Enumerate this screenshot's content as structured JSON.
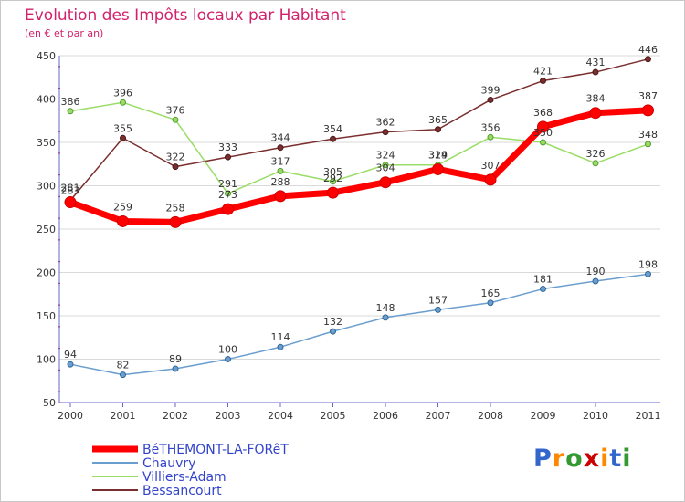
{
  "title": "Evolution des Impôts locaux par Habitant",
  "subtitle": "(en € et par an)",
  "logo_text": "Proxiti",
  "chart_data": {
    "type": "line",
    "title": "Evolution des Impôts locaux par Habitant",
    "subtitle": "(en € et par an)",
    "xlabel": "",
    "ylabel": "",
    "x": [
      "2000",
      "2001",
      "2002",
      "2003",
      "2004",
      "2005",
      "2006",
      "2007",
      "2008",
      "2009",
      "2010",
      "2011"
    ],
    "ylim": [
      50,
      450
    ],
    "yticks": [
      50,
      100,
      150,
      200,
      250,
      300,
      350,
      400,
      450
    ],
    "legend_position": "bottom-left",
    "series": [
      {
        "name": "BéTHEMONT-LA-FORêT",
        "color": "#ff0000",
        "values": [
          281,
          259,
          258,
          273,
          288,
          292,
          304,
          319,
          307,
          368,
          384,
          387
        ],
        "labels": [
          "281",
          "259",
          "258",
          "273",
          "288",
          "292",
          "304",
          "319",
          "307",
          "368",
          "384",
          "387"
        ]
      },
      {
        "name": "Chauvry",
        "color": "#6a9ecf",
        "values": [
          94,
          82,
          89,
          100,
          114,
          132,
          148,
          157,
          165,
          181,
          190,
          198
        ],
        "labels": [
          "94",
          "82",
          "89",
          "100",
          "114",
          "132",
          "148",
          "157",
          "165",
          "181",
          "190",
          "198"
        ]
      },
      {
        "name": "Villiers-Adam",
        "color": "#99dd66",
        "values": [
          386,
          396,
          376,
          291,
          317,
          305,
          324,
          324,
          356,
          350,
          326,
          348
        ],
        "labels": [
          "386",
          "396",
          "376",
          "291",
          "317",
          "305",
          "324",
          "324",
          "356",
          "350",
          "326",
          "348"
        ]
      },
      {
        "name": "Bessancourt",
        "color": "#7a2e2e",
        "values": [
          283,
          355,
          322,
          333,
          344,
          354,
          362,
          365,
          399,
          421,
          431,
          446
        ],
        "labels": [
          "283",
          "355",
          "322",
          "333",
          "344",
          "354",
          "362",
          "365",
          "399",
          "421",
          "431",
          "446"
        ]
      }
    ]
  }
}
